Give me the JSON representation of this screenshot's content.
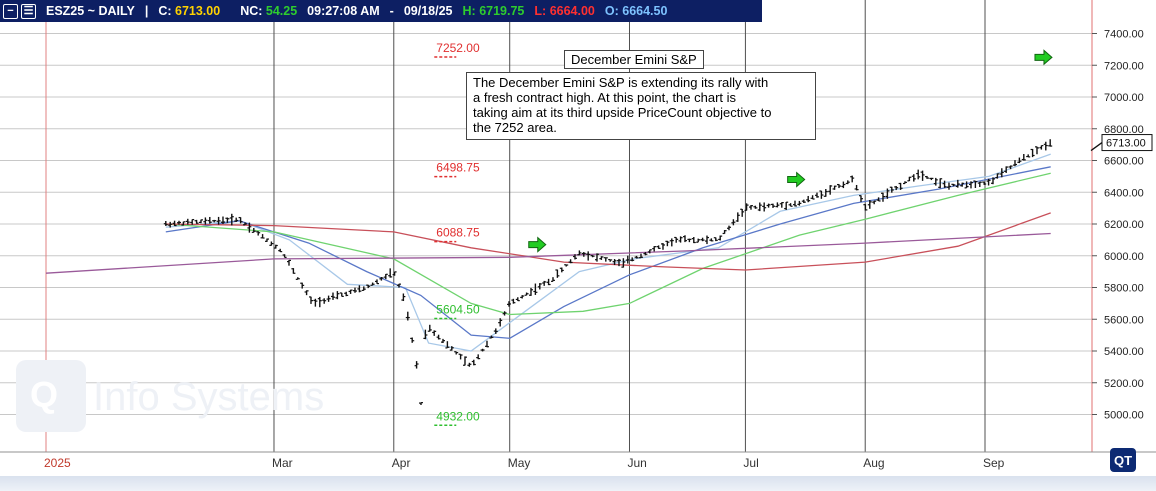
{
  "header": {
    "icons": [
      "minus-icon",
      "list-icon"
    ],
    "symbol": "ESZ25 ~ DAILY",
    "separator": "|",
    "close_label": "C:",
    "close_value": "6713.00",
    "nc_label": "NC:",
    "nc_value": "54.25",
    "time": "09:27:08 AM",
    "dash": "-",
    "date": "09/18/25",
    "high_label": "H:",
    "high_value": "6719.75",
    "low_label": "L:",
    "low_value": "6664.00",
    "open_label": "O:",
    "open_value": "6664.50",
    "colors": {
      "bar": "#0d1f63",
      "close": "#ffd200",
      "nc": "#2ecc2e",
      "high": "#2ecc2e",
      "low": "#ff3030",
      "open": "#7ec3ff"
    }
  },
  "annotation": {
    "title": "December Emini S&P",
    "lines": [
      "The December Emini S&P is extending its rally with",
      "a fresh contract high.  At this point, the chart is",
      "taking aim at its third upside PriceCount objective to",
      "the 7252 area."
    ]
  },
  "watermark": "Info Systems",
  "logo": "QT",
  "chart_data": {
    "type": "ohlc",
    "instrument": "ESZ25",
    "period": "DAILY",
    "ylim": [
      4850,
      7500
    ],
    "y_ticks": [
      5000,
      5200,
      5400,
      5600,
      5800,
      6000,
      6200,
      6400,
      6600,
      6800,
      7000,
      7200,
      7400
    ],
    "y_tick_labels": [
      "5000.00",
      "5200.00",
      "5400.00",
      "5600.00",
      "5800.00",
      "6000.00",
      "6200.00",
      "6400.00",
      "6600.00",
      "6800.00",
      "7000.00",
      "7200.00",
      "7400.00"
    ],
    "x_month_labels": [
      "2025",
      "Mar",
      "Apr",
      "May",
      "Jun",
      "Jul",
      "Aug",
      "Sep"
    ],
    "last_price_label": "6713.00",
    "grid": true,
    "series_points": [
      {
        "d": "2025-02-01",
        "v": 6200
      },
      {
        "d": "2025-02-20",
        "v": 6230
      },
      {
        "d": "2025-03-03",
        "v": 6030
      },
      {
        "d": "2025-03-11",
        "v": 5700
      },
      {
        "d": "2025-03-25",
        "v": 5800
      },
      {
        "d": "2025-04-01",
        "v": 5900
      },
      {
        "d": "2025-04-04",
        "v": 5700
      },
      {
        "d": "2025-04-07",
        "v": 5300
      },
      {
        "d": "2025-04-08",
        "v": 5050
      },
      {
        "d": "2025-04-09",
        "v": 5500
      },
      {
        "d": "2025-04-10",
        "v": 5550
      },
      {
        "d": "2025-04-21",
        "v": 5300
      },
      {
        "d": "2025-04-28",
        "v": 5550
      },
      {
        "d": "2025-05-01",
        "v": 5700
      },
      {
        "d": "2025-05-12",
        "v": 5850
      },
      {
        "d": "2025-05-19",
        "v": 6020
      },
      {
        "d": "2025-05-30",
        "v": 5950
      },
      {
        "d": "2025-06-13",
        "v": 6100
      },
      {
        "d": "2025-06-24",
        "v": 6100
      },
      {
        "d": "2025-07-01",
        "v": 6300
      },
      {
        "d": "2025-07-15",
        "v": 6330
      },
      {
        "d": "2025-07-29",
        "v": 6480
      },
      {
        "d": "2025-08-01",
        "v": 6300
      },
      {
        "d": "2025-08-15",
        "v": 6520
      },
      {
        "d": "2025-08-22",
        "v": 6440
      },
      {
        "d": "2025-09-02",
        "v": 6460
      },
      {
        "d": "2025-09-10",
        "v": 6600
      },
      {
        "d": "2025-09-18",
        "v": 6713
      }
    ],
    "moving_averages": [
      {
        "color": "#a8c8e8",
        "points": [
          {
            "d": "2025-02-01",
            "v": 6180
          },
          {
            "d": "2025-02-20",
            "v": 6220
          },
          {
            "d": "2025-03-05",
            "v": 6100
          },
          {
            "d": "2025-03-20",
            "v": 5820
          },
          {
            "d": "2025-04-04",
            "v": 5800
          },
          {
            "d": "2025-04-10",
            "v": 5450
          },
          {
            "d": "2025-04-21",
            "v": 5400
          },
          {
            "d": "2025-05-05",
            "v": 5650
          },
          {
            "d": "2025-05-19",
            "v": 5900
          },
          {
            "d": "2025-06-02",
            "v": 5980
          },
          {
            "d": "2025-06-24",
            "v": 6050
          },
          {
            "d": "2025-07-10",
            "v": 6280
          },
          {
            "d": "2025-07-29",
            "v": 6380
          },
          {
            "d": "2025-08-15",
            "v": 6440
          },
          {
            "d": "2025-09-02",
            "v": 6500
          },
          {
            "d": "2025-09-18",
            "v": 6640
          }
        ]
      },
      {
        "color": "#5a78c8",
        "points": [
          {
            "d": "2025-02-01",
            "v": 6150
          },
          {
            "d": "2025-02-20",
            "v": 6220
          },
          {
            "d": "2025-03-10",
            "v": 6080
          },
          {
            "d": "2025-03-25",
            "v": 5900
          },
          {
            "d": "2025-04-08",
            "v": 5750
          },
          {
            "d": "2025-04-21",
            "v": 5500
          },
          {
            "d": "2025-05-01",
            "v": 5480
          },
          {
            "d": "2025-05-15",
            "v": 5680
          },
          {
            "d": "2025-06-01",
            "v": 5880
          },
          {
            "d": "2025-06-20",
            "v": 6050
          },
          {
            "d": "2025-07-10",
            "v": 6200
          },
          {
            "d": "2025-07-29",
            "v": 6330
          },
          {
            "d": "2025-08-20",
            "v": 6420
          },
          {
            "d": "2025-09-18",
            "v": 6560
          }
        ]
      },
      {
        "color": "#6fd36f",
        "points": [
          {
            "d": "2025-02-01",
            "v": 6200
          },
          {
            "d": "2025-03-01",
            "v": 6150
          },
          {
            "d": "2025-04-01",
            "v": 5980
          },
          {
            "d": "2025-04-21",
            "v": 5700
          },
          {
            "d": "2025-05-01",
            "v": 5630
          },
          {
            "d": "2025-05-20",
            "v": 5650
          },
          {
            "d": "2025-06-01",
            "v": 5700
          },
          {
            "d": "2025-06-20",
            "v": 5920
          },
          {
            "d": "2025-07-15",
            "v": 6130
          },
          {
            "d": "2025-08-01",
            "v": 6230
          },
          {
            "d": "2025-08-25",
            "v": 6380
          },
          {
            "d": "2025-09-18",
            "v": 6520
          }
        ]
      },
      {
        "color": "#c8505a",
        "points": [
          {
            "d": "2025-02-01",
            "v": 6200
          },
          {
            "d": "2025-03-01",
            "v": 6190
          },
          {
            "d": "2025-04-01",
            "v": 6150
          },
          {
            "d": "2025-04-21",
            "v": 6050
          },
          {
            "d": "2025-05-15",
            "v": 5960
          },
          {
            "d": "2025-06-10",
            "v": 5930
          },
          {
            "d": "2025-07-01",
            "v": 5910
          },
          {
            "d": "2025-08-01",
            "v": 5960
          },
          {
            "d": "2025-08-25",
            "v": 6060
          },
          {
            "d": "2025-09-18",
            "v": 6270
          }
        ]
      },
      {
        "color": "#9a5a9a",
        "points": [
          {
            "d": "2025-01-01",
            "v": 5890
          },
          {
            "d": "2025-03-01",
            "v": 5980
          },
          {
            "d": "2025-05-01",
            "v": 5990
          },
          {
            "d": "2025-06-15",
            "v": 6030
          },
          {
            "d": "2025-08-01",
            "v": 6080
          },
          {
            "d": "2025-09-18",
            "v": 6140
          }
        ]
      }
    ],
    "pricecount_objectives": [
      {
        "label": "7252.00",
        "value": 7252,
        "d": "2025-04-12",
        "color": "#e03030"
      },
      {
        "label": "6498.75",
        "value": 6498.75,
        "d": "2025-04-12",
        "color": "#e03030"
      },
      {
        "label": "6088.75",
        "value": 6088.75,
        "d": "2025-04-12",
        "color": "#e03030"
      },
      {
        "label": "5604.50",
        "value": 5604.5,
        "d": "2025-04-12",
        "color": "#2fbf2f"
      },
      {
        "label": "4932.00",
        "value": 4932,
        "d": "2025-04-12",
        "color": "#2fbf2f"
      }
    ],
    "signal_arrows": [
      {
        "d": "2025-05-08",
        "v": 6070
      },
      {
        "d": "2025-07-14",
        "v": 6480
      },
      {
        "d": "2025-09-16",
        "v": 7250
      }
    ]
  }
}
